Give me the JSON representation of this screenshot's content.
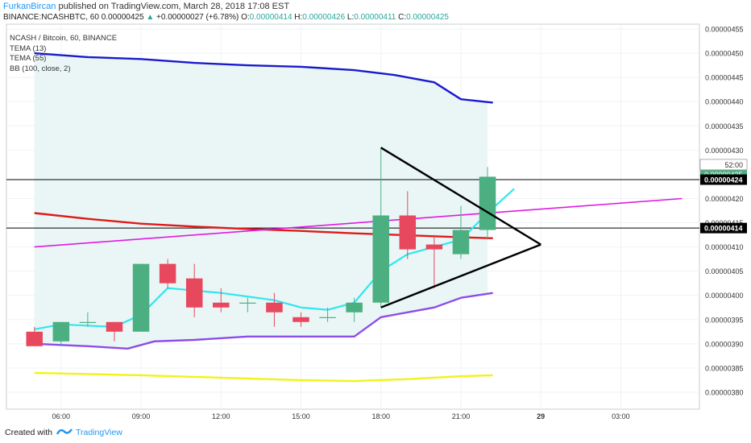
{
  "header": {
    "author": "FurkanBircan",
    "published": " published on TradingView.com, March 28, 2018 17:08 EST",
    "symbol": "BINANCE:NCASHBTC, 60",
    "last": "0.00000425",
    "change": "+0.00000027 (+6.78%)",
    "o_label": "O:",
    "o_value": "0.00000414",
    "h_label": "H:",
    "h_value": "0.00000426",
    "l_label": "L:",
    "l_value": "0.00000411",
    "c_label": "C:",
    "c_value": "0.00000425"
  },
  "legend": {
    "title": "NCASH / Bitcoin, 60, BINANCE",
    "tema13": "TEMA (13)",
    "tema55": "TEMA (55)",
    "bb": "BB (100, close, 2)"
  },
  "footer": {
    "created": "Created with",
    "brand": "TradingView"
  },
  "colors": {
    "up": "#4caf82",
    "down": "#e8485e",
    "tema13": "#2ee6f0",
    "tema55": "#e01a1a",
    "bb_upper": "#1a1acc",
    "bb_lower": "#8c4de8",
    "bb_mid": "#e01ae0",
    "yellow": "#f2f21a",
    "band_fill": "#eaf6f6",
    "grid": "#eef2f6"
  },
  "chart_data": {
    "type": "candlestick",
    "x_ticks": [
      {
        "label": "06:00",
        "t": 6
      },
      {
        "label": "09:00",
        "t": 9
      },
      {
        "label": "12:00",
        "t": 12
      },
      {
        "label": "15:00",
        "t": 15
      },
      {
        "label": "18:00",
        "t": 18
      },
      {
        "label": "21:00",
        "t": 21
      },
      {
        "label": "29",
        "t": 24
      },
      {
        "label": "03:00",
        "t": 27
      }
    ],
    "y_ticks": [
      "0.00000455",
      "0.00000450",
      "0.00000445",
      "0.00000440",
      "0.00000435",
      "0.00000430",
      "0.00000420",
      "0.00000415",
      "0.00000410",
      "0.00000405",
      "0.00000400",
      "0.00000395",
      "0.00000390",
      "0.00000385",
      "0.00000380"
    ],
    "ylim": [
      3.765e-06,
      4.56e-06
    ],
    "price_labels": [
      {
        "text": "0.00000425",
        "value": 4.25e-06,
        "style": "green"
      },
      {
        "text": "52:00",
        "value": 4.27e-06,
        "style": "white"
      },
      {
        "text": "0.00000424",
        "value": 4.239e-06,
        "style": "black"
      },
      {
        "text": "0.00000414",
        "value": 4.139e-06,
        "style": "black"
      }
    ],
    "hlines": [
      4.239e-06,
      4.139e-06
    ],
    "candles": [
      {
        "t": 5,
        "o": 3.925e-06,
        "h": 3.935e-06,
        "l": 3.895e-06,
        "c": 3.895e-06
      },
      {
        "t": 6,
        "o": 3.905e-06,
        "h": 3.945e-06,
        "l": 3.895e-06,
        "c": 3.945e-06
      },
      {
        "t": 7,
        "o": 3.945e-06,
        "h": 3.965e-06,
        "l": 3.935e-06,
        "c": 3.945e-06
      },
      {
        "t": 8,
        "o": 3.945e-06,
        "h": 3.945e-06,
        "l": 3.905e-06,
        "c": 3.925e-06
      },
      {
        "t": 9,
        "o": 3.925e-06,
        "h": 4.065e-06,
        "l": 3.925e-06,
        "c": 4.065e-06
      },
      {
        "t": 10,
        "o": 4.065e-06,
        "h": 4.075e-06,
        "l": 4.015e-06,
        "c": 4.025e-06
      },
      {
        "t": 11,
        "o": 4.035e-06,
        "h": 4.065e-06,
        "l": 3.955e-06,
        "c": 3.975e-06
      },
      {
        "t": 12,
        "o": 3.985e-06,
        "h": 4.015e-06,
        "l": 3.965e-06,
        "c": 3.975e-06
      },
      {
        "t": 13,
        "o": 3.985e-06,
        "h": 3.995e-06,
        "l": 3.965e-06,
        "c": 3.985e-06
      },
      {
        "t": 14,
        "o": 3.985e-06,
        "h": 4.005e-06,
        "l": 3.935e-06,
        "c": 3.965e-06
      },
      {
        "t": 15,
        "o": 3.955e-06,
        "h": 3.965e-06,
        "l": 3.935e-06,
        "c": 3.945e-06
      },
      {
        "t": 16,
        "o": 3.955e-06,
        "h": 3.975e-06,
        "l": 3.945e-06,
        "c": 3.955e-06
      },
      {
        "t": 17,
        "o": 3.965e-06,
        "h": 3.995e-06,
        "l": 3.945e-06,
        "c": 3.985e-06
      },
      {
        "t": 18,
        "o": 3.985e-06,
        "h": 4.305e-06,
        "l": 3.975e-06,
        "c": 4.165e-06
      },
      {
        "t": 19,
        "o": 4.165e-06,
        "h": 4.215e-06,
        "l": 4.075e-06,
        "c": 4.095e-06
      },
      {
        "t": 20,
        "o": 4.105e-06,
        "h": 4.125e-06,
        "l": 4.015e-06,
        "c": 4.095e-06
      },
      {
        "t": 21,
        "o": 4.085e-06,
        "h": 4.185e-06,
        "l": 4.075e-06,
        "c": 4.135e-06
      },
      {
        "t": 22,
        "o": 4.135e-06,
        "h": 4.265e-06,
        "l": 4.115e-06,
        "c": 4.245e-06
      }
    ],
    "lines": [
      {
        "name": "TEMA (13)",
        "color": "#2ee6f0",
        "width": 2.2,
        "points": [
          [
            5,
            3.93e-06
          ],
          [
            6,
            3.94e-06
          ],
          [
            8,
            3.935e-06
          ],
          [
            9,
            3.96e-06
          ],
          [
            10,
            4.015e-06
          ],
          [
            12,
            4.005e-06
          ],
          [
            14,
            3.99e-06
          ],
          [
            15,
            3.975e-06
          ],
          [
            16,
            3.97e-06
          ],
          [
            17,
            3.985e-06
          ],
          [
            18,
            4.05e-06
          ],
          [
            19,
            4.085e-06
          ],
          [
            20,
            4.1e-06
          ],
          [
            21,
            4.115e-06
          ],
          [
            22,
            4.17e-06
          ],
          [
            23,
            4.22e-06
          ]
        ]
      },
      {
        "name": "TEMA (55)",
        "color": "#e01a1a",
        "width": 2.4,
        "points": [
          [
            5,
            4.17e-06
          ],
          [
            7,
            4.158e-06
          ],
          [
            9,
            4.148e-06
          ],
          [
            11,
            4.142e-06
          ],
          [
            13,
            4.137e-06
          ],
          [
            15,
            4.133e-06
          ],
          [
            17,
            4.128e-06
          ],
          [
            19,
            4.124e-06
          ],
          [
            21,
            4.12e-06
          ],
          [
            22.2,
            4.118e-06
          ]
        ]
      },
      {
        "name": "BB upper",
        "color": "#1a1acc",
        "width": 2.4,
        "points": [
          [
            5,
            4.5e-06
          ],
          [
            7,
            4.492e-06
          ],
          [
            9,
            4.488e-06
          ],
          [
            11,
            4.48e-06
          ],
          [
            13,
            4.475e-06
          ],
          [
            15,
            4.472e-06
          ],
          [
            17,
            4.465e-06
          ],
          [
            18.5,
            4.455e-06
          ],
          [
            20,
            4.44e-06
          ],
          [
            21,
            4.405e-06
          ],
          [
            22.2,
            4.398e-06
          ]
        ]
      },
      {
        "name": "BB lower",
        "color": "#8c4de8",
        "width": 2.4,
        "points": [
          [
            5,
            3.9e-06
          ],
          [
            7,
            3.895e-06
          ],
          [
            8.5,
            3.89e-06
          ],
          [
            9.5,
            3.905e-06
          ],
          [
            11,
            3.908e-06
          ],
          [
            13,
            3.915e-06
          ],
          [
            15,
            3.915e-06
          ],
          [
            17,
            3.915e-06
          ],
          [
            18,
            3.955e-06
          ],
          [
            20,
            3.975e-06
          ],
          [
            21,
            3.995e-06
          ],
          [
            22.2,
            4.005e-06
          ]
        ]
      },
      {
        "name": "BB basis",
        "color": "#e01ae0",
        "width": 1.6,
        "points": [
          [
            5,
            4.1e-06
          ],
          [
            29.3,
            4.2e-06
          ]
        ]
      },
      {
        "name": "Yellow",
        "color": "#f2f21a",
        "width": 2.4,
        "points": [
          [
            5,
            3.84e-06
          ],
          [
            9,
            3.835e-06
          ],
          [
            12,
            3.83e-06
          ],
          [
            15,
            3.825e-06
          ],
          [
            17,
            3.823e-06
          ],
          [
            19,
            3.827e-06
          ],
          [
            21,
            3.833e-06
          ],
          [
            22.2,
            3.835e-06
          ]
        ]
      },
      {
        "name": "Triangle upper",
        "color": "#000000",
        "width": 2.4,
        "points": [
          [
            18,
            4.305e-06
          ],
          [
            24,
            4.105e-06
          ]
        ]
      },
      {
        "name": "Triangle lower",
        "color": "#000000",
        "width": 2.4,
        "points": [
          [
            18,
            3.975e-06
          ],
          [
            24,
            4.105e-06
          ]
        ]
      }
    ],
    "band": {
      "from_t": 5,
      "to_t": 22.2
    }
  }
}
